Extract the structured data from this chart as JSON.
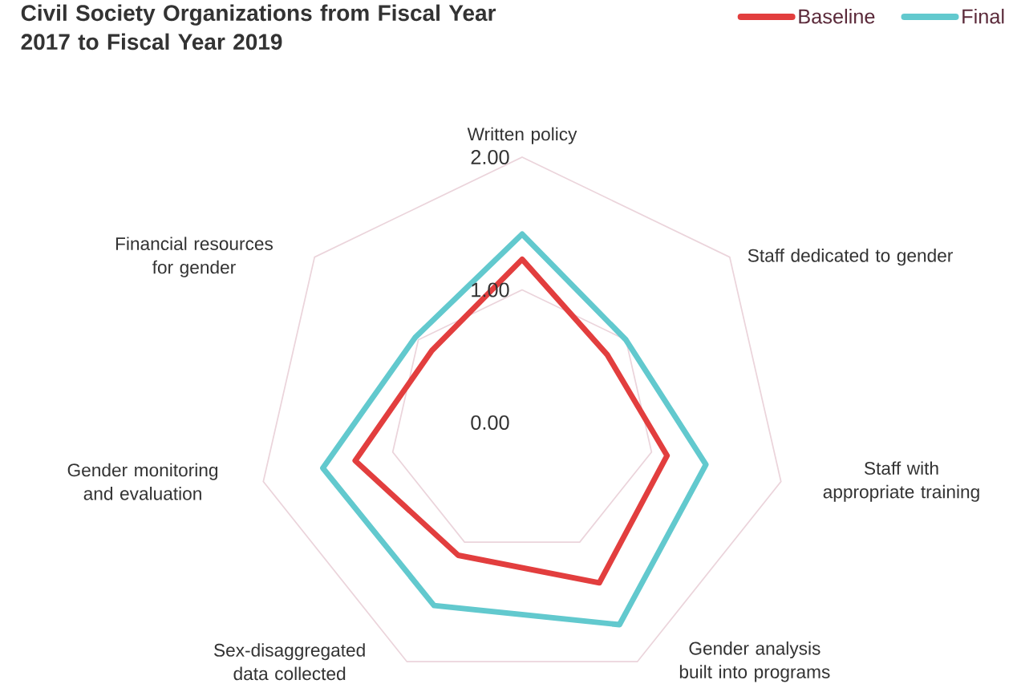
{
  "chart_data": {
    "type": "radar",
    "title": "Civil Society Organizations from Fiscal Year 2017 to Fiscal Year 2019",
    "categories": [
      "Written policy",
      "Staff dedicated to gender",
      "Staff with appropriate training",
      "Gender analysis built into programs",
      "Sex-disaggregated data collected",
      "Gender monitoring and evaluation",
      "Financial resources for gender"
    ],
    "series": [
      {
        "name": "Baseline",
        "color": "#e23e3e",
        "values": [
          1.23,
          0.82,
          1.12,
          1.34,
          1.11,
          1.29,
          0.87
        ]
      },
      {
        "name": "Final",
        "color": "#62c9ce",
        "values": [
          1.42,
          1.0,
          1.42,
          1.69,
          1.53,
          1.54,
          1.03
        ]
      }
    ],
    "ylim": [
      0,
      2
    ],
    "yticks": [
      {
        "value": 0,
        "label": "0.00"
      },
      {
        "value": 1,
        "label": "1.00"
      },
      {
        "value": 2,
        "label": "2.00"
      }
    ],
    "grid": true,
    "legend": "top right"
  }
}
